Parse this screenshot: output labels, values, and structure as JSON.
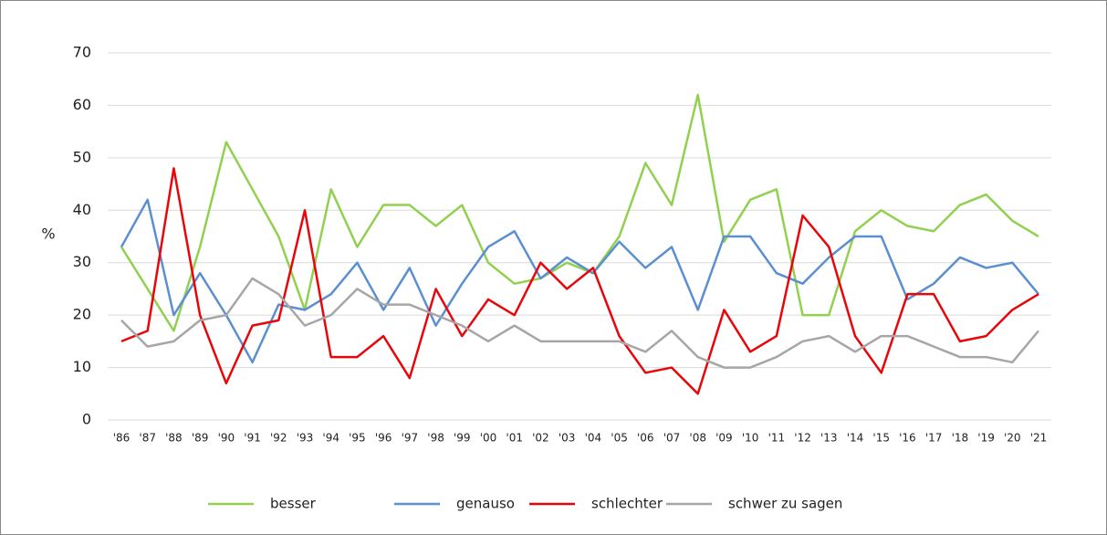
{
  "chart_data": {
    "type": "line",
    "ylabel": "%",
    "categories": [
      "'86",
      "'87",
      "'88",
      "'89",
      "'90",
      "'91",
      "'92",
      "'93",
      "'94",
      "'95",
      "'96",
      "'97",
      "'98",
      "'99",
      "'00",
      "'01",
      "'02",
      "'03",
      "'04",
      "'05",
      "'06",
      "'07",
      "'08",
      "'09",
      "'10",
      "'11",
      "'12",
      "'13",
      "'14",
      "'15",
      "'16",
      "'17",
      "'18",
      "'19",
      "'20",
      "'21"
    ],
    "series": [
      {
        "name": "besser",
        "color": "#92d050",
        "values": [
          33,
          25,
          17,
          33,
          53,
          44,
          35,
          21,
          44,
          33,
          41,
          41,
          37,
          41,
          30,
          26,
          27,
          30,
          28,
          35,
          49,
          41,
          62,
          34,
          42,
          44,
          20,
          20,
          36,
          40,
          37,
          36,
          41,
          43,
          38,
          35
        ]
      },
      {
        "name": "genauso",
        "color": "#5b8fd0",
        "values": [
          33,
          42,
          20,
          28,
          20,
          11,
          22,
          21,
          24,
          30,
          21,
          29,
          18,
          26,
          33,
          36,
          27,
          31,
          28,
          34,
          29,
          33,
          21,
          35,
          35,
          28,
          26,
          31,
          35,
          35,
          23,
          26,
          31,
          29,
          30,
          24
        ]
      },
      {
        "name": "schlechter",
        "color": "#e8060b",
        "values": [
          15,
          17,
          48,
          20,
          7,
          18,
          19,
          40,
          12,
          12,
          16,
          8,
          25,
          16,
          23,
          20,
          30,
          25,
          29,
          16,
          9,
          10,
          5,
          21,
          13,
          16,
          39,
          33,
          16,
          9,
          24,
          24,
          15,
          16,
          21,
          24
        ]
      },
      {
        "name": "schwer zu sagen",
        "color": "#a6a6a6",
        "values": [
          19,
          14,
          15,
          19,
          20,
          27,
          24,
          18,
          20,
          25,
          22,
          22,
          20,
          18,
          15,
          18,
          15,
          15,
          15,
          15,
          13,
          17,
          12,
          10,
          10,
          12,
          15,
          16,
          13,
          16,
          16,
          14,
          12,
          12,
          11,
          17
        ]
      }
    ],
    "ylim": [
      0,
      70
    ],
    "yticks": [
      0,
      10,
      20,
      30,
      40,
      50,
      60,
      70
    ],
    "grid": true,
    "legend": "bottom"
  }
}
